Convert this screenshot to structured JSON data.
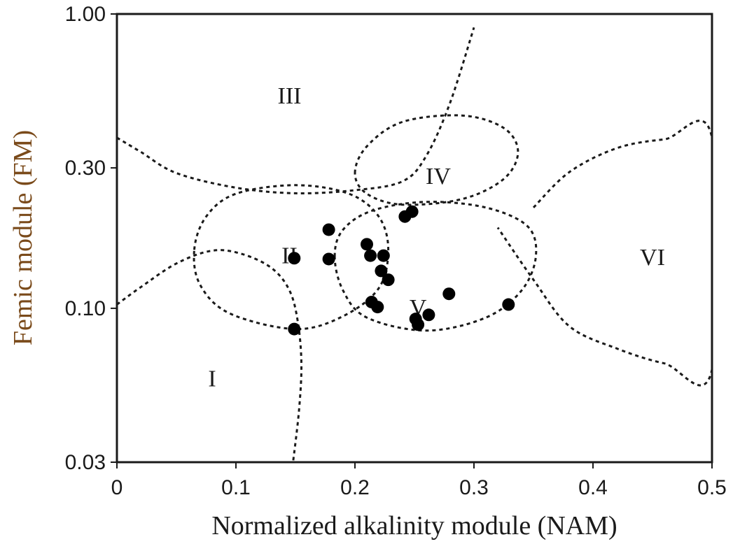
{
  "chart_data": {
    "type": "scatter",
    "xlabel": "Normalized alkalinity module (NAM)",
    "ylabel": "Femic module (FM)",
    "xlim": [
      0,
      0.5
    ],
    "ylim": [
      0.03,
      1.0
    ],
    "yscale": "log",
    "grid": false,
    "xticks": [
      {
        "value": 0,
        "label": "0"
      },
      {
        "value": 0.1,
        "label": "0.1"
      },
      {
        "value": 0.2,
        "label": "0.2"
      },
      {
        "value": 0.3,
        "label": "0.3"
      },
      {
        "value": 0.4,
        "label": "0.4"
      },
      {
        "value": 0.5,
        "label": "0.5"
      }
    ],
    "yticks": [
      {
        "value": 0.03,
        "label": "0.03"
      },
      {
        "value": 0.1,
        "label": "0.10"
      },
      {
        "value": 0.3,
        "label": "0.30"
      },
      {
        "value": 1.0,
        "label": "1.00"
      }
    ],
    "regions": [
      {
        "label": "I",
        "x": 0.08,
        "y": 0.058
      },
      {
        "label": "II",
        "x": 0.145,
        "y": 0.152
      },
      {
        "label": "III",
        "x": 0.145,
        "y": 0.53
      },
      {
        "label": "IV",
        "x": 0.27,
        "y": 0.283
      },
      {
        "label": "V",
        "x": 0.253,
        "y": 0.101
      },
      {
        "label": "VI",
        "x": 0.45,
        "y": 0.15
      }
    ],
    "boundaries": [
      {
        "name": "I",
        "points": [
          [
            0,
            0.103
          ],
          [
            0.02,
            0.118
          ],
          [
            0.05,
            0.142
          ],
          [
            0.08,
            0.157
          ],
          [
            0.105,
            0.153
          ],
          [
            0.13,
            0.137
          ],
          [
            0.145,
            0.115
          ],
          [
            0.152,
            0.09
          ],
          [
            0.155,
            0.065
          ],
          [
            0.153,
            0.045
          ],
          [
            0.148,
            0.03
          ]
        ],
        "closed": false
      },
      {
        "name": "II",
        "points": [
          [
            0.065,
            0.158
          ],
          [
            0.075,
            0.205
          ],
          [
            0.1,
            0.245
          ],
          [
            0.15,
            0.262
          ],
          [
            0.195,
            0.245
          ],
          [
            0.22,
            0.205
          ],
          [
            0.228,
            0.158
          ],
          [
            0.22,
            0.117
          ],
          [
            0.19,
            0.094
          ],
          [
            0.15,
            0.085
          ],
          [
            0.095,
            0.096
          ],
          [
            0.07,
            0.12
          ]
        ],
        "closed": true
      },
      {
        "name": "III",
        "points": [
          [
            0,
            0.38
          ],
          [
            0.02,
            0.34
          ],
          [
            0.05,
            0.288
          ],
          [
            0.1,
            0.257
          ],
          [
            0.15,
            0.246
          ],
          [
            0.2,
            0.252
          ],
          [
            0.24,
            0.27
          ],
          [
            0.26,
            0.33
          ],
          [
            0.28,
            0.5
          ],
          [
            0.3,
            0.9
          ]
        ],
        "closed": false
      },
      {
        "name": "IV",
        "points": [
          [
            0.2,
            0.288
          ],
          [
            0.21,
            0.355
          ],
          [
            0.24,
            0.43
          ],
          [
            0.29,
            0.452
          ],
          [
            0.325,
            0.41
          ],
          [
            0.337,
            0.34
          ],
          [
            0.325,
            0.275
          ],
          [
            0.29,
            0.235
          ],
          [
            0.24,
            0.225
          ],
          [
            0.21,
            0.245
          ]
        ],
        "closed": true
      },
      {
        "name": "V",
        "points": [
          [
            0.183,
            0.15
          ],
          [
            0.19,
            0.185
          ],
          [
            0.215,
            0.215
          ],
          [
            0.26,
            0.23
          ],
          [
            0.31,
            0.22
          ],
          [
            0.345,
            0.19
          ],
          [
            0.352,
            0.15
          ],
          [
            0.34,
            0.115
          ],
          [
            0.31,
            0.093
          ],
          [
            0.26,
            0.084
          ],
          [
            0.21,
            0.093
          ],
          [
            0.19,
            0.115
          ]
        ],
        "closed": true
      },
      {
        "name": "VI",
        "points": [
          [
            0.35,
            0.22
          ],
          [
            0.38,
            0.29
          ],
          [
            0.42,
            0.35
          ],
          [
            0.46,
            0.375
          ],
          [
            0.5,
            0.38
          ],
          [
            0.5,
            0.062
          ],
          [
            0.46,
            0.065
          ],
          [
            0.42,
            0.073
          ],
          [
            0.38,
            0.087
          ],
          [
            0.35,
            0.125
          ],
          [
            0.32,
            0.188
          ]
        ],
        "closed": false
      }
    ],
    "series": [
      {
        "points": [
          [
            0.149,
            0.085
          ],
          [
            0.149,
            0.148
          ],
          [
            0.178,
            0.147
          ],
          [
            0.178,
            0.185
          ],
          [
            0.21,
            0.165
          ],
          [
            0.213,
            0.151
          ],
          [
            0.224,
            0.151
          ],
          [
            0.222,
            0.134
          ],
          [
            0.228,
            0.125
          ],
          [
            0.214,
            0.105
          ],
          [
            0.219,
            0.101
          ],
          [
            0.242,
            0.205
          ],
          [
            0.248,
            0.213
          ],
          [
            0.251,
            0.092
          ],
          [
            0.253,
            0.088
          ],
          [
            0.262,
            0.095
          ],
          [
            0.279,
            0.112
          ],
          [
            0.329,
            0.103
          ]
        ]
      }
    ]
  }
}
